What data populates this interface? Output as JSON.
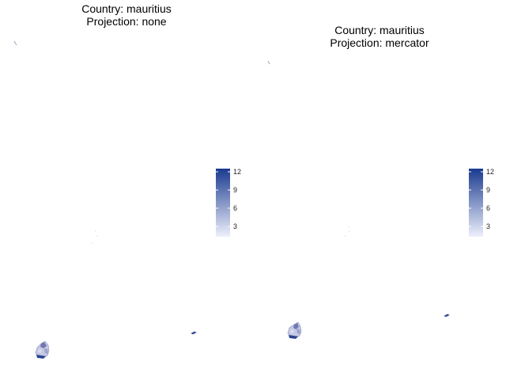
{
  "panels": [
    {
      "title_line1": "Country: mauritius",
      "title_line2": "Projection: none"
    },
    {
      "title_line1": "Country: mauritius",
      "title_line2": "Projection: mercator"
    }
  ],
  "legend": {
    "ticks": [
      "12",
      "9",
      "6",
      "3"
    ],
    "color_low": "#eef0fb",
    "color_high": "#1a3a8f"
  }
}
